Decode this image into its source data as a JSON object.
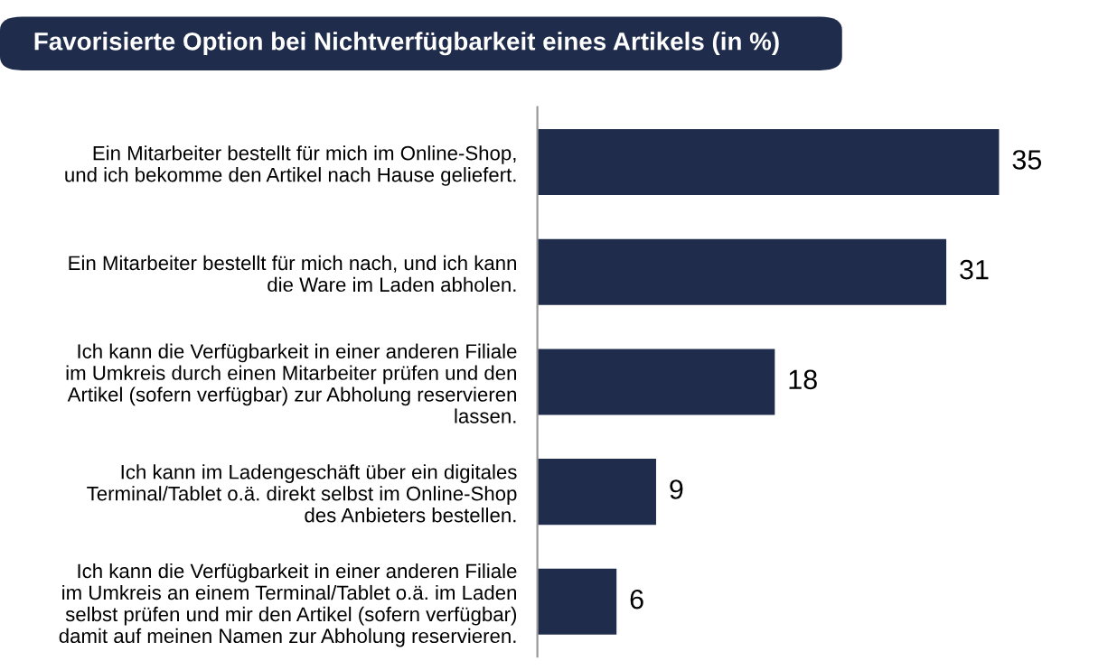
{
  "chart_data": {
    "type": "bar",
    "orientation": "horizontal",
    "title": "Favorisierte Option bei Nichtverfügbarkeit eines Artikels (in %)",
    "categories": [
      "Ein Mitarbeiter bestellt für mich im Online-Shop,\nund ich bekomme den Artikel nach Hause geliefert.",
      "Ein Mitarbeiter bestellt für mich nach, und ich kann\ndie Ware im Laden abholen.",
      "Ich kann die Verfügbarkeit in einer anderen Filiale\nim Umkreis durch einen Mitarbeiter prüfen und den\nArtikel (sofern verfügbar) zur Abholung reservieren\nlassen.",
      "Ich kann im Ladengeschäft über ein digitales\nTerminal/Tablet o.ä. direkt selbst im Online-Shop\ndes Anbieters bestellen.",
      "Ich kann die Verfügbarkeit in einer anderen Filiale\nim Umkreis an einem Terminal/Tablet o.ä. im Laden\nselbst prüfen und mir den Artikel (sofern verfügbar)\ndamit auf meinen Namen zur Abholung reservieren."
    ],
    "values": [
      35,
      31,
      18,
      9,
      6
    ],
    "color": "#1f2c4c",
    "data_labels": true,
    "grid": false,
    "legend": false
  }
}
